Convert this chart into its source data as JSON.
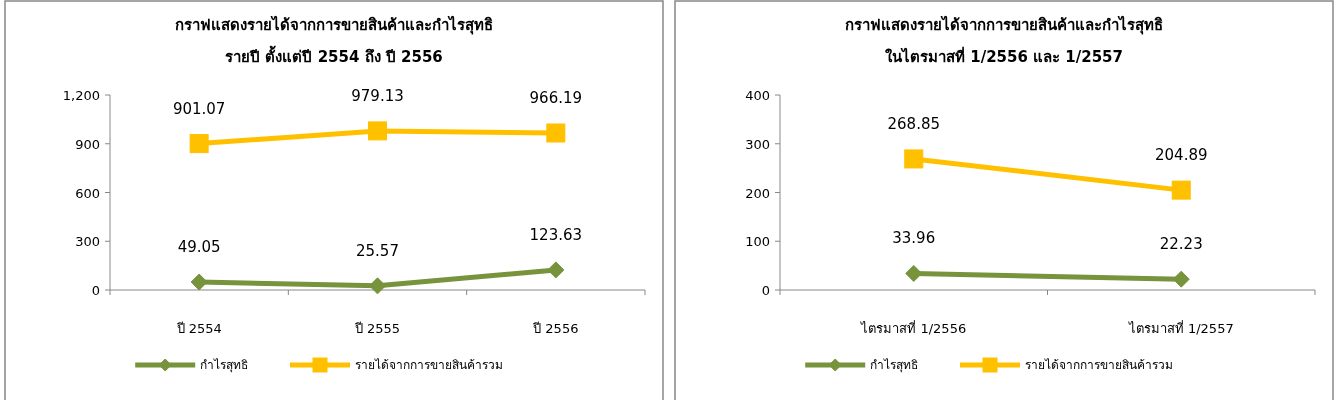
{
  "chart_data": [
    {
      "type": "line",
      "title": "กราฟแสดงรายได้จากการขายสินค้าและกำไรสุทธิ",
      "subtitle": "รายปี ตั้งแต่ปี 2554 ถึง ปี 2556",
      "categories": [
        "ปี 2554",
        "ปี 2555",
        "ปี 2556"
      ],
      "series": [
        {
          "name": "กำไรสุทธิ",
          "color": "#77933c",
          "marker": "diamond",
          "values": [
            49.05,
            25.57,
            123.63
          ]
        },
        {
          "name": "รายได้จากการขายสินค้ารวม",
          "color": "#ffc000",
          "marker": "square",
          "values": [
            901.07,
            979.13,
            966.19
          ]
        }
      ],
      "ylim": [
        0,
        1200
      ],
      "yticks": [
        0,
        300,
        600,
        900,
        {
          "value": 1200,
          "label": "1,200"
        }
      ],
      "data_labels": true,
      "legend": "bottom",
      "grid": false
    },
    {
      "type": "line",
      "title": "กราฟแสดงรายได้จากการขายสินค้าและกำไรสุทธิ",
      "subtitle": "ในไตรมาสที่ 1/2556 และ 1/2557",
      "categories": [
        "ไตรมาสที่ 1/2556",
        "ไตรมาสที่ 1/2557"
      ],
      "series": [
        {
          "name": "กำไรสุทธิ",
          "color": "#77933c",
          "marker": "diamond",
          "values": [
            33.96,
            22.23
          ]
        },
        {
          "name": "รายได้จากการขายสินค้ารวม",
          "color": "#ffc000",
          "marker": "square",
          "values": [
            268.85,
            204.89
          ]
        }
      ],
      "ylim": [
        0,
        400
      ],
      "yticks": [
        0,
        100,
        200,
        300,
        400
      ],
      "data_labels": true,
      "legend": "bottom",
      "grid": false
    }
  ]
}
